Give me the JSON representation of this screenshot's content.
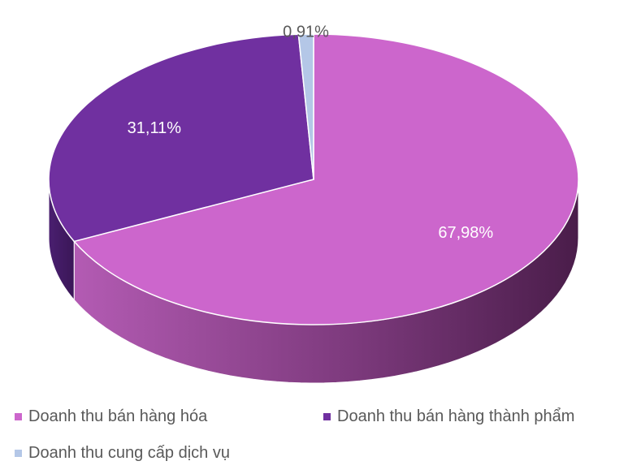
{
  "chart_data": {
    "type": "pie",
    "title": "",
    "categories": [
      "Doanh thu bán hàng hóa",
      "Doanh thu bán hàng thành phẩm",
      "Doanh thu cung cấp dịch vụ"
    ],
    "values": [
      67.98,
      31.11,
      0.91
    ],
    "data_labels": [
      "67,98%",
      "31,11%",
      "0,91%"
    ],
    "colors": [
      "#cc66cc",
      "#7030a0",
      "#b4c7e7"
    ],
    "legend": {
      "placement": "bottom",
      "entries": [
        "Doanh thu bán hàng hóa",
        "Doanh thu bán hàng thành phẩm",
        "Doanh thu cung cấp dịch vụ"
      ]
    },
    "style": "3d"
  }
}
